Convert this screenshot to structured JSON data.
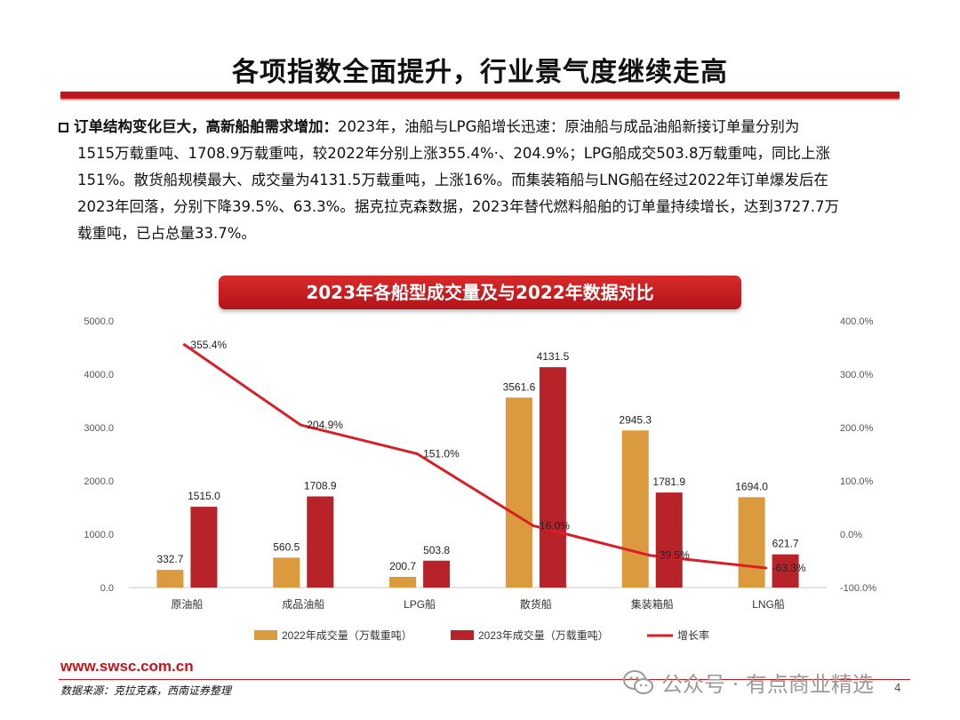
{
  "page": {
    "title": "各项指数全面提升，行业景气度继续走高",
    "summary_lead": "订单结构变化巨大，高新船舶需求增加：",
    "summary_lines": [
      "2023年，油船与LPG船增长迅速：原油船与成品油船新接订单量分别为",
      "1515万载重吨、1708.9万载重吨，较2022年分别上涨355.4%·、204.9%；LPG船成交503.8万载重吨，同比上涨",
      "151%。散货船规模最大、成交量为4131.5万载重吨，上涨16%。而集装箱船与LNG船在经过2022年订单爆发后在",
      "2023年回落，分别下降39.5%、63.3%。据克拉克森数据，2023年替代燃料船舶的订单量持续增长，达到3727.7万",
      "载重吨，已占总量33.7%。"
    ],
    "chart_banner": "2023年各船型成交量及与2022年数据对比",
    "website": "www.swsc.com.cn",
    "source": "数据来源：克拉克森，西南证券整理",
    "watermark": "公众号 · 有点商业精选",
    "page_number": "4"
  },
  "chart_data": {
    "type": "bar",
    "categories": [
      "原油船",
      "成品油船",
      "LPG船",
      "散货船",
      "集装箱船",
      "LNG船"
    ],
    "series": [
      {
        "name": "2022年成交量（万载重吨）",
        "type": "bar",
        "axis": "left",
        "color": "#dc9a3e",
        "values": [
          332.7,
          560.5,
          200.7,
          3561.6,
          2945.3,
          1694.0
        ],
        "labels": [
          "332.7",
          "560.5",
          "200.7",
          "3561.6",
          "2945.3",
          "1694.0"
        ]
      },
      {
        "name": "2023年成交量（万载重吨）",
        "type": "bar",
        "axis": "left",
        "color": "#b8232a",
        "values": [
          1515.0,
          1708.9,
          503.8,
          4131.5,
          1781.9,
          621.7
        ],
        "labels": [
          "1515.0",
          "1708.9",
          "503.8",
          "4131.5",
          "1781.9",
          "621.7"
        ]
      },
      {
        "name": "增长率",
        "type": "line",
        "axis": "right",
        "color": "#d81e26",
        "values": [
          355.4,
          204.9,
          151.0,
          16.0,
          -39.5,
          -63.3
        ],
        "labels": [
          "355.4%",
          "204.9%",
          "151.0%",
          "16.0%",
          "-39.5%",
          "-63.3%"
        ]
      }
    ],
    "y_left": {
      "min": 0,
      "max": 5000,
      "ticks": [
        "0.0",
        "1000.0",
        "2000.0",
        "3000.0",
        "4000.0",
        "5000.0"
      ]
    },
    "y_right": {
      "min": -100,
      "max": 400,
      "ticks": [
        "-100.0%",
        "0.0%",
        "100.0%",
        "200.0%",
        "300.0%",
        "400.0%"
      ]
    },
    "legend_position": "bottom",
    "grid": false
  }
}
